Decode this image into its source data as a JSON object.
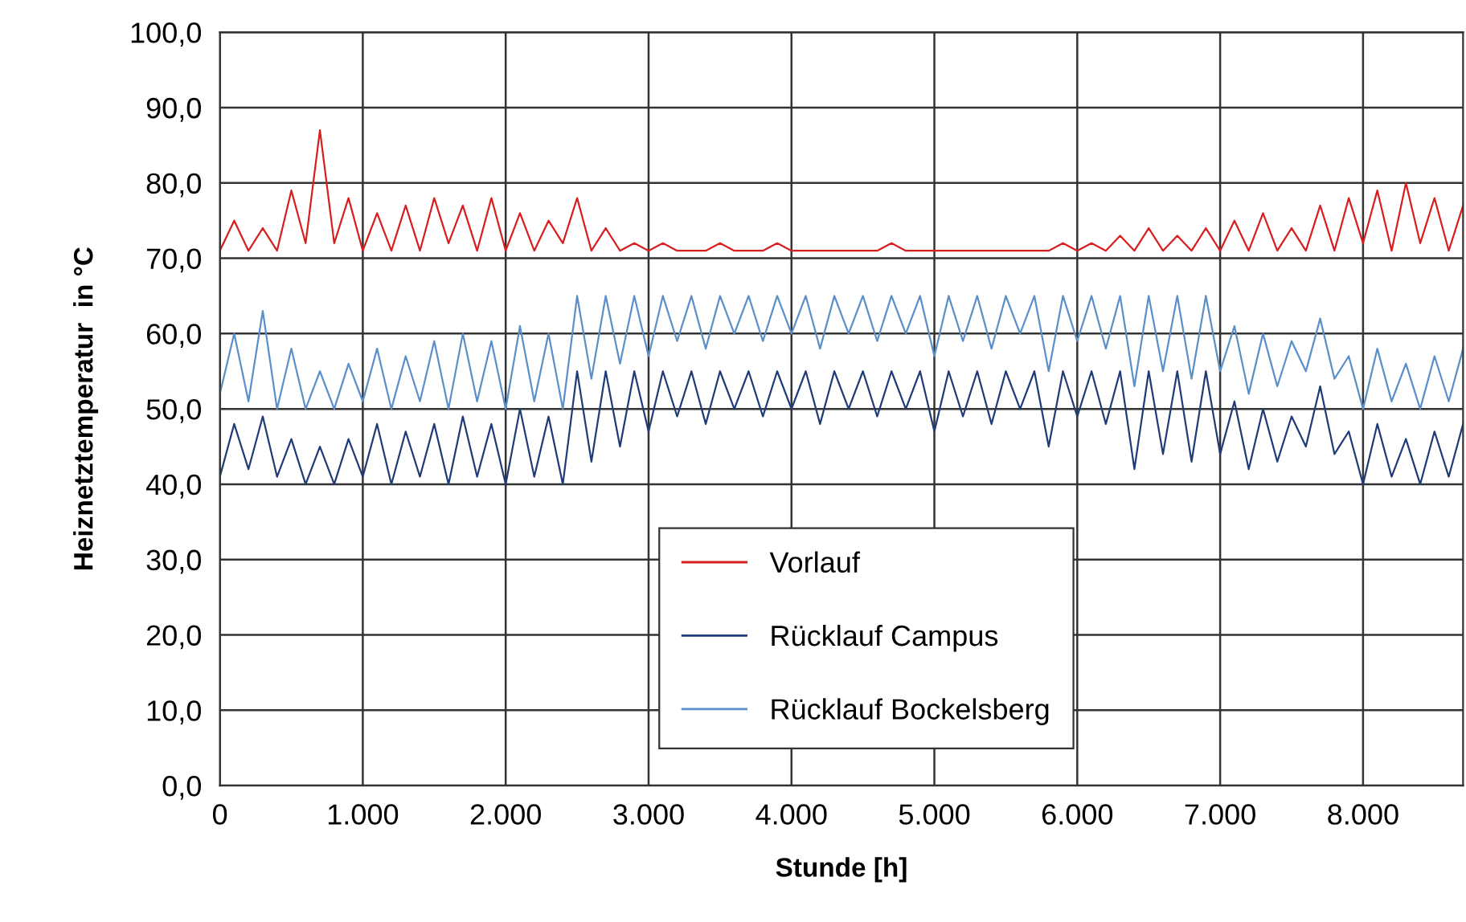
{
  "chart_data": {
    "type": "line",
    "xlabel": "Stunde [h]",
    "ylabel": "Heiznetztemperatur  in °C",
    "x": [
      0,
      100,
      200,
      300,
      400,
      500,
      600,
      700,
      800,
      900,
      1000,
      1100,
      1200,
      1300,
      1400,
      1500,
      1600,
      1700,
      1800,
      1900,
      2000,
      2100,
      2200,
      2300,
      2400,
      2500,
      2600,
      2700,
      2800,
      2900,
      3000,
      3100,
      3200,
      3300,
      3400,
      3500,
      3600,
      3700,
      3800,
      3900,
      4000,
      4100,
      4200,
      4300,
      4400,
      4500,
      4600,
      4700,
      4800,
      4900,
      5000,
      5100,
      5200,
      5300,
      5400,
      5500,
      5600,
      5700,
      5800,
      5900,
      6000,
      6100,
      6200,
      6300,
      6400,
      6500,
      6600,
      6700,
      6800,
      6900,
      7000,
      7100,
      7200,
      7300,
      7400,
      7500,
      7600,
      7700,
      7800,
      7900,
      8000,
      8100,
      8200,
      8300,
      8400,
      8500,
      8600,
      8700
    ],
    "series": [
      {
        "name": "Vorlauf",
        "color": "#d81e1e",
        "values": [
          71,
          75,
          71,
          74,
          71,
          79,
          72,
          87,
          72,
          78,
          71,
          76,
          71,
          77,
          71,
          78,
          72,
          77,
          71,
          78,
          71,
          76,
          71,
          75,
          72,
          78,
          71,
          74,
          71,
          72,
          71,
          72,
          71,
          71,
          71,
          72,
          71,
          71,
          71,
          72,
          71,
          71,
          71,
          71,
          71,
          71,
          71,
          72,
          71,
          71,
          71,
          71,
          71,
          71,
          71,
          71,
          71,
          71,
          71,
          72,
          71,
          72,
          71,
          73,
          71,
          74,
          71,
          73,
          71,
          74,
          71,
          75,
          71,
          76,
          71,
          74,
          71,
          77,
          71,
          78,
          72,
          79,
          71,
          80,
          72,
          78,
          71,
          77
        ]
      },
      {
        "name": "Rücklauf Campus",
        "color": "#1f3c78",
        "values": [
          41,
          48,
          42,
          49,
          41,
          46,
          40,
          45,
          40,
          46,
          41,
          48,
          40,
          47,
          41,
          48,
          40,
          49,
          41,
          48,
          40,
          50,
          41,
          49,
          40,
          55,
          43,
          55,
          45,
          55,
          47,
          55,
          49,
          55,
          48,
          55,
          50,
          55,
          49,
          55,
          50,
          55,
          48,
          55,
          50,
          55,
          49,
          55,
          50,
          55,
          47,
          55,
          49,
          55,
          48,
          55,
          50,
          55,
          45,
          55,
          49,
          55,
          48,
          55,
          42,
          55,
          44,
          55,
          43,
          55,
          44,
          51,
          42,
          50,
          43,
          49,
          45,
          53,
          44,
          47,
          40,
          48,
          41,
          46,
          40,
          47,
          41,
          48
        ]
      },
      {
        "name": "Rücklauf Bockelsberg",
        "color": "#5b8fc9",
        "values": [
          52,
          60,
          51,
          63,
          50,
          58,
          50,
          55,
          50,
          56,
          51,
          58,
          50,
          57,
          51,
          59,
          50,
          60,
          51,
          59,
          50,
          61,
          51,
          60,
          50,
          65,
          54,
          65,
          56,
          65,
          57,
          65,
          59,
          65,
          58,
          65,
          60,
          65,
          59,
          65,
          60,
          65,
          58,
          65,
          60,
          65,
          59,
          65,
          60,
          65,
          57,
          65,
          59,
          65,
          58,
          65,
          60,
          65,
          55,
          65,
          59,
          65,
          58,
          65,
          53,
          65,
          55,
          65,
          54,
          65,
          55,
          61,
          52,
          60,
          53,
          59,
          55,
          62,
          54,
          57,
          50,
          58,
          51,
          56,
          50,
          57,
          51,
          58
        ]
      }
    ],
    "xlim": [
      0,
      8700
    ],
    "ylim": [
      0,
      100
    ],
    "xticks": [
      0,
      {
        "value": 1000,
        "label": "1.000"
      },
      {
        "value": 2000,
        "label": "2.000"
      },
      {
        "value": 3000,
        "label": "3.000"
      },
      {
        "value": 4000,
        "label": "4.000"
      },
      {
        "value": 5000,
        "label": "5.000"
      },
      {
        "value": 6000,
        "label": "6.000"
      },
      {
        "value": 7000,
        "label": "7.000"
      },
      {
        "value": 8000,
        "label": "8.000"
      }
    ],
    "yticks": [
      {
        "value": 0,
        "label": "0,0"
      },
      {
        "value": 10,
        "label": "10,0"
      },
      {
        "value": 20,
        "label": "20,0"
      },
      {
        "value": 30,
        "label": "30,0"
      },
      {
        "value": 40,
        "label": "40,0"
      },
      {
        "value": 50,
        "label": "50,0"
      },
      {
        "value": 60,
        "label": "60,0"
      },
      {
        "value": 70,
        "label": "70,0"
      },
      {
        "value": 80,
        "label": "80,0"
      },
      {
        "value": 90,
        "label": "90,0"
      },
      {
        "value": 100,
        "label": "100,0"
      }
    ],
    "grid": true,
    "legend": "bottom",
    "marker": "none",
    "line_style": "solid"
  }
}
